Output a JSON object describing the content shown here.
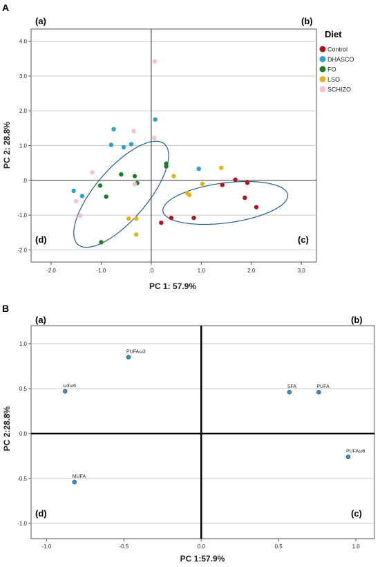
{
  "chart_data": [
    {
      "type": "scatter",
      "panel_label": "A",
      "quadrants": [
        "(a)",
        "(b)",
        "(c)",
        "(d)"
      ],
      "xlabel": "PC 1: 57.9%",
      "ylabel": "PC 2: 28.8%",
      "xlim": [
        -2.4,
        3.3
      ],
      "ylim": [
        -2.35,
        4.35
      ],
      "xticks": [
        -2.0,
        -1.0,
        0.0,
        1.0,
        2.0,
        3.0
      ],
      "xtick_labels": [
        "-2.0",
        "-1.0",
        ".0",
        "1.0",
        "2.0",
        "3.0"
      ],
      "yticks": [
        4.0,
        3.0,
        2.0,
        1.0,
        0.0,
        -1.0,
        -2.0
      ],
      "ytick_labels": [
        "4.0",
        "3.0",
        "2.0",
        "1.0",
        ".0",
        "-1.0",
        "-2.0"
      ],
      "grid": "horizontal",
      "legend": {
        "title": "Diet",
        "placement": "right"
      },
      "ellipses": [
        {
          "center": [
            -0.6,
            -0.4
          ],
          "semi_axes": [
            1.7,
            0.58
          ],
          "angle_deg": 62
        },
        {
          "center": [
            1.48,
            -0.65
          ],
          "semi_axes": [
            1.27,
            0.57
          ],
          "angle_deg": 12
        }
      ],
      "series": [
        {
          "name": "Control",
          "color": "#b0161b",
          "x": [
            1.68,
            1.92,
            1.42,
            1.87,
            2.1,
            0.85,
            0.4,
            0.2
          ],
          "y": [
            0.02,
            -0.07,
            -0.13,
            -0.5,
            -0.77,
            -1.08,
            -1.08,
            -1.22
          ]
        },
        {
          "name": "DHASCO",
          "color": "#2a9fd9",
          "x": [
            -0.75,
            0.08,
            -0.8,
            -0.4,
            -0.55,
            0.95,
            -1.55,
            -1.38
          ],
          "y": [
            1.47,
            1.75,
            1.02,
            1.04,
            0.95,
            0.33,
            -0.3,
            -0.45
          ]
        },
        {
          "name": "FO",
          "color": "#1f7d2a",
          "x": [
            0.3,
            0.3,
            -0.6,
            -0.33,
            -1.02,
            -0.28,
            -0.9,
            -1.0
          ],
          "y": [
            0.48,
            0.4,
            0.17,
            0.12,
            -0.15,
            -0.08,
            -0.47,
            -1.78
          ]
        },
        {
          "name": "LSO",
          "color": "#e8b414",
          "x": [
            1.4,
            0.45,
            1.02,
            0.72,
            0.76,
            -0.45,
            -0.3,
            -0.3
          ],
          "y": [
            0.36,
            0.12,
            -0.1,
            -0.37,
            -0.42,
            -1.1,
            -1.1,
            -1.56
          ]
        },
        {
          "name": "SCHIZO",
          "color": "#f5bfd6",
          "x": [
            0.07,
            -0.35,
            0.06,
            -1.18,
            -0.33,
            -1.5,
            -1.42
          ],
          "y": [
            3.42,
            1.42,
            1.22,
            0.23,
            -0.11,
            -0.6,
            -1.02
          ]
        }
      ]
    },
    {
      "type": "scatter",
      "panel_label": "B",
      "quadrants": [
        "(a)",
        "(b)",
        "(c)",
        "(d)"
      ],
      "xlabel": "PC 1:57.9%",
      "ylabel": "PC 2:28.8%",
      "xlim": [
        -1.1,
        1.12
      ],
      "ylim": [
        -1.17,
        1.2
      ],
      "xticks": [
        -1.0,
        -0.5,
        0.0,
        0.5,
        1.0
      ],
      "xtick_labels": [
        "-1.0",
        "-0.5",
        "0.0",
        "0.5",
        "1.0"
      ],
      "yticks": [
        1.0,
        0.5,
        0.0,
        -0.5,
        -1.0
      ],
      "ytick_labels": [
        "1.0",
        "0.5",
        "0.0",
        "-0.5",
        "-1.0"
      ],
      "grid": "horizontal",
      "point_color": "#3d8fc6",
      "points": [
        {
          "label": "PUFAω3",
          "x": -0.47,
          "y": 0.85
        },
        {
          "label": "ω3ω6",
          "x": -0.88,
          "y": 0.47
        },
        {
          "label": "SFA",
          "x": 0.57,
          "y": 0.46
        },
        {
          "label": "PUFA",
          "x": 0.76,
          "y": 0.46
        },
        {
          "label": "PUFAω6",
          "x": 0.95,
          "y": -0.26
        },
        {
          "label": "MUFA",
          "x": -0.82,
          "y": -0.54
        }
      ]
    }
  ]
}
